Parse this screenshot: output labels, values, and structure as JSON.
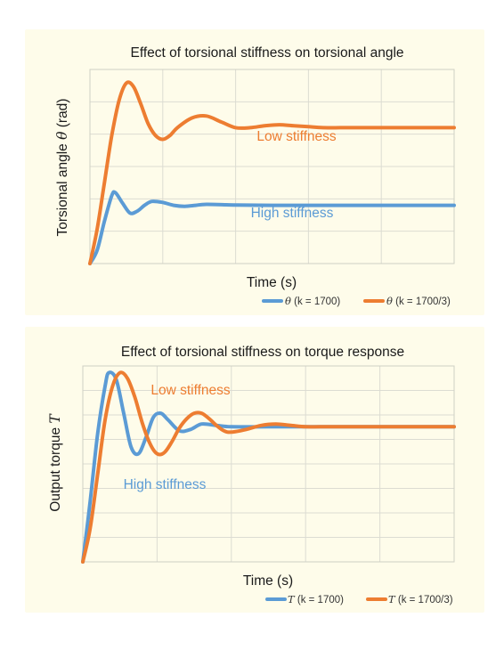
{
  "colors": {
    "high": "#5b9bd5",
    "low": "#ed7d31",
    "panel_bg": "#fefcea"
  },
  "chart_data": [
    {
      "type": "line",
      "title": "Effect of torsional stiffness on torsional angle",
      "xlabel": "Time (s)",
      "ylabel_text": "Torsional angle ",
      "ylabel_symbol": "θ",
      "ylabel_unit": " (rad)",
      "grid": true,
      "xlim": [
        0,
        5
      ],
      "ylim": [
        0,
        1
      ],
      "series": [
        {
          "name": "θ  (k = 1700)",
          "name_symbol": "θ",
          "name_text": "  (k = 1700)",
          "color": "#5b9bd5",
          "annotation": "High stiffness",
          "x": [
            0,
            0.1,
            0.2,
            0.3,
            0.35,
            0.45,
            0.55,
            0.65,
            0.75,
            0.85,
            1.0,
            1.15,
            1.3,
            1.45,
            1.6,
            2.0,
            2.5,
            3.0,
            4.0,
            5.0
          ],
          "y": [
            0,
            0.07,
            0.22,
            0.35,
            0.365,
            0.31,
            0.26,
            0.27,
            0.3,
            0.32,
            0.315,
            0.3,
            0.295,
            0.3,
            0.305,
            0.302,
            0.3,
            0.3,
            0.3,
            0.3
          ]
        },
        {
          "name": "θ  (k = 1700/3)",
          "name_symbol": "θ",
          "name_text": "  (k = 1700/3)",
          "color": "#ed7d31",
          "annotation": "Low stiffness",
          "x": [
            0,
            0.1,
            0.2,
            0.3,
            0.4,
            0.5,
            0.6,
            0.7,
            0.8,
            0.9,
            1.0,
            1.1,
            1.2,
            1.4,
            1.6,
            1.8,
            2.0,
            2.2,
            2.4,
            2.6,
            2.8,
            3.0,
            3.2,
            3.5,
            4.0,
            4.5,
            5.0
          ],
          "y": [
            0,
            0.18,
            0.42,
            0.66,
            0.84,
            0.93,
            0.91,
            0.82,
            0.72,
            0.66,
            0.64,
            0.66,
            0.7,
            0.75,
            0.76,
            0.73,
            0.7,
            0.7,
            0.71,
            0.715,
            0.71,
            0.705,
            0.7,
            0.7,
            0.7,
            0.7,
            0.7
          ]
        }
      ]
    },
    {
      "type": "line",
      "title": "Effect of torsional stiffness on torque response",
      "xlabel": "Time (s)",
      "ylabel_text": "Output torque ",
      "ylabel_symbol": "T",
      "grid": true,
      "xlim": [
        0,
        5
      ],
      "ylim": [
        0,
        1.45
      ],
      "series": [
        {
          "name": "T (k = 1700)",
          "name_symbol": "T",
          "name_text": " (k = 1700)",
          "color": "#5b9bd5",
          "annotation": "High stiffness",
          "x": [
            0,
            0.1,
            0.2,
            0.3,
            0.35,
            0.45,
            0.55,
            0.65,
            0.75,
            0.85,
            0.95,
            1.05,
            1.15,
            1.3,
            1.45,
            1.6,
            1.8,
            2.0,
            2.5,
            3.0,
            4.0,
            5.0
          ],
          "y": [
            0,
            0.45,
            0.95,
            1.3,
            1.4,
            1.35,
            1.1,
            0.85,
            0.8,
            0.92,
            1.07,
            1.1,
            1.05,
            0.97,
            0.98,
            1.02,
            1.01,
            1.0,
            1.0,
            1.0,
            1.0,
            1.0
          ]
        },
        {
          "name": "T  (k = 1700/3)",
          "name_symbol": "T",
          "name_text": "  (k = 1700/3)",
          "color": "#ed7d31",
          "annotation": "Low stiffness",
          "x": [
            0,
            0.1,
            0.2,
            0.3,
            0.4,
            0.5,
            0.6,
            0.7,
            0.8,
            0.9,
            1.0,
            1.1,
            1.2,
            1.3,
            1.4,
            1.5,
            1.6,
            1.7,
            1.8,
            1.9,
            2.0,
            2.2,
            2.4,
            2.6,
            2.8,
            3.0,
            3.2,
            3.5,
            4.0,
            5.0
          ],
          "y": [
            0,
            0.25,
            0.65,
            1.05,
            1.3,
            1.4,
            1.36,
            1.22,
            1.03,
            0.88,
            0.8,
            0.81,
            0.89,
            0.99,
            1.06,
            1.1,
            1.1,
            1.06,
            1.01,
            0.97,
            0.96,
            0.98,
            1.01,
            1.02,
            1.01,
            1.0,
            1.0,
            1.0,
            1.0,
            1.0
          ]
        }
      ]
    }
  ]
}
